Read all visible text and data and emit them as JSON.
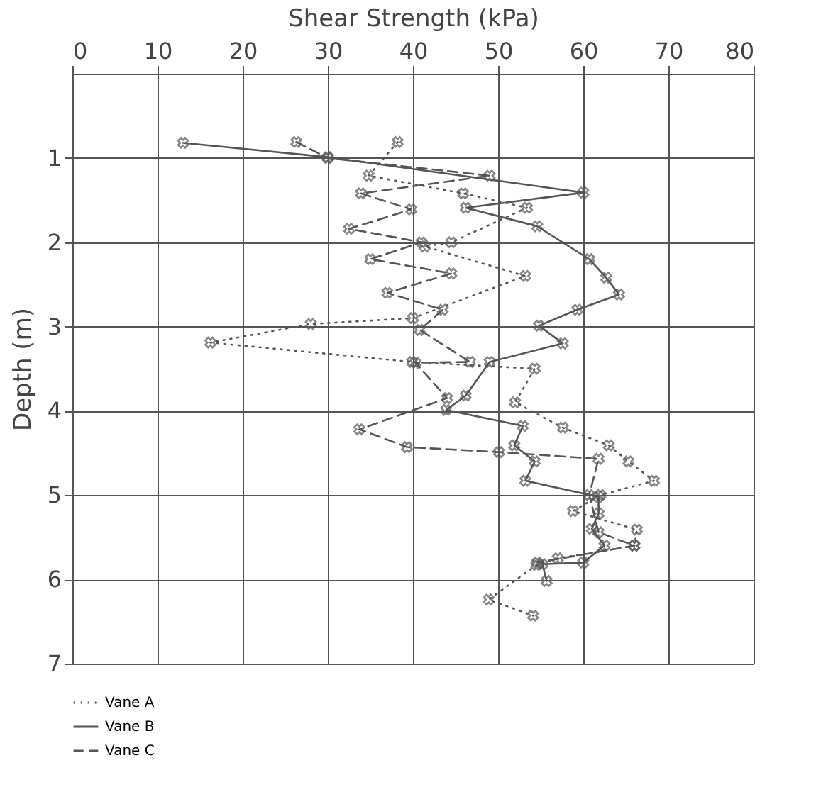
{
  "chart_data": {
    "type": "line",
    "xlabel": "Shear Strength (kPa)",
    "ylabel": "Depth (m)",
    "xlim": [
      0,
      80
    ],
    "xticks": [
      0,
      10,
      20,
      30,
      40,
      50,
      60,
      70,
      80
    ],
    "ylim": [
      7,
      0
    ],
    "yticks": [
      1,
      2,
      3,
      4,
      5,
      6,
      7
    ],
    "grid": true,
    "legend": "bottom left",
    "marker": "cross",
    "series": [
      {
        "name": "Vane A",
        "color": "#555555",
        "line_style": "dotted",
        "x": [
          38.2,
          34.8,
          45.9,
          53.4,
          44.5,
          41.4,
          53.2,
          40.0,
          28.0,
          16.2,
          39.9,
          54.3,
          52,
          57.6,
          63,
          65.3,
          68.3,
          62,
          58.8,
          66.3,
          66,
          57,
          54.5,
          48.9,
          54.1
        ],
        "values": [
          0.81,
          1.21,
          1.42,
          1.59,
          2.0,
          2.05,
          2.4,
          2.9,
          2.97,
          3.19,
          3.42,
          3.5,
          3.9,
          4.2,
          4.41,
          4.6,
          4.83,
          5.0,
          5.19,
          5.41,
          5.6,
          5.75,
          5.83,
          6.24,
          6.43
        ]
      },
      {
        "name": "Vane B",
        "color": "#555555",
        "line_style": "solid",
        "x": [
          13,
          30,
          60,
          46.2,
          54.6,
          60.7,
          62.7,
          64.2,
          59.3,
          54.8,
          57.6,
          49,
          46.2,
          43.9,
          52.9,
          51.9,
          54.3,
          53.2,
          61.8,
          61.8,
          61,
          62.5,
          60,
          55.2,
          55.7
        ],
        "values": [
          0.82,
          0.99,
          1.41,
          1.59,
          1.81,
          2.2,
          2.42,
          2.62,
          2.8,
          2.99,
          3.2,
          3.42,
          3.82,
          3.99,
          4.18,
          4.41,
          4.6,
          4.83,
          5.02,
          5.22,
          5.4,
          5.6,
          5.8,
          5.82,
          6.02
        ]
      },
      {
        "name": "Vane C",
        "color": "#555555",
        "line_style": "dashed",
        "x": [
          26.3,
          30,
          49,
          33.9,
          39.8,
          32.5,
          41,
          35,
          44.5,
          37,
          43.5,
          40.8,
          46.7,
          40.3,
          44,
          33.7,
          39.3,
          50.1,
          61.8,
          60.7,
          61.8,
          66,
          54.6
        ],
        "values": [
          0.81,
          1.0,
          1.21,
          1.42,
          1.61,
          1.84,
          2.0,
          2.2,
          2.37,
          2.6,
          2.8,
          3.04,
          3.42,
          3.43,
          3.85,
          4.22,
          4.43,
          4.49,
          4.57,
          5.0,
          5.44,
          5.6,
          5.8
        ]
      }
    ]
  }
}
